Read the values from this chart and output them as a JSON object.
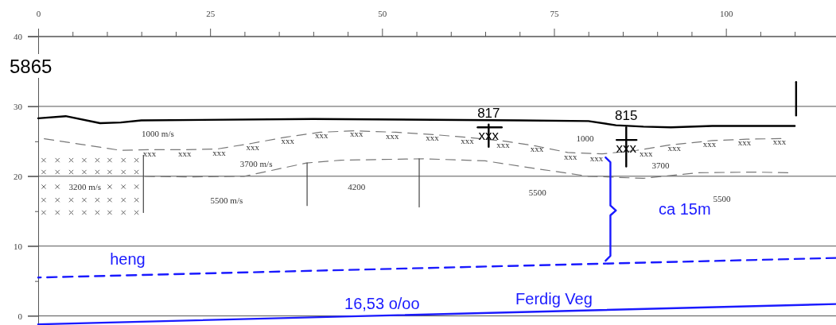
{
  "chart_data": {
    "type": "line",
    "title": "5865",
    "xlim": [
      0,
      116
    ],
    "ylim": [
      -1.3,
      40
    ],
    "xticks": [
      0,
      {
        "value": 5,
        "label": null
      },
      {
        "value": 10,
        "label": null
      },
      {
        "value": 15,
        "label": null
      },
      {
        "value": 20,
        "label": null
      },
      25,
      {
        "value": 30,
        "label": null
      },
      {
        "value": 35,
        "label": null
      },
      {
        "value": 40,
        "label": null
      },
      {
        "value": 45,
        "label": null
      },
      50,
      {
        "value": 55,
        "label": null
      },
      {
        "value": 60,
        "label": null
      },
      {
        "value": 65,
        "label": null
      },
      {
        "value": 70,
        "label": null
      },
      75,
      {
        "value": 80,
        "label": null
      },
      {
        "value": 85,
        "label": null
      },
      {
        "value": 90,
        "label": null
      },
      {
        "value": 95,
        "label": null
      },
      100,
      {
        "value": 105,
        "label": null
      },
      {
        "value": 110,
        "label": null
      }
    ],
    "yticks": [
      0,
      {
        "value": 5,
        "label": null
      },
      10,
      {
        "value": 15,
        "label": null
      },
      20,
      {
        "value": 25,
        "label": null
      },
      30,
      {
        "value": 35,
        "label": null
      },
      40
    ],
    "grid": "y",
    "series": [
      {
        "color": "#000000",
        "line_style": "solid",
        "x": [
          0,
          4,
          9,
          12,
          15,
          40,
          70,
          80,
          84,
          88,
          92,
          98,
          110
        ],
        "values": [
          28.3,
          28.6,
          27.6,
          27.7,
          28.0,
          28.2,
          28.0,
          27.9,
          27.3,
          27.1,
          27.0,
          27.2,
          27.2
        ]
      },
      {
        "color": "#777777",
        "line_style": "dashed",
        "x": [
          0,
          6,
          12,
          16,
          21,
          26,
          31,
          36,
          41,
          46,
          52,
          57,
          62,
          68,
          72,
          77,
          82,
          87,
          92,
          98,
          103,
          108
        ],
        "values": [
          25.5,
          24.6,
          23.7,
          23.8,
          23.8,
          23.9,
          24.7,
          25.6,
          26.3,
          26.5,
          26.3,
          26.0,
          25.6,
          25.0,
          24.4,
          23.4,
          23.2,
          23.7,
          24.5,
          25.1,
          25.3,
          25.4
        ]
      },
      {
        "color": "#777777",
        "line_style": "dashed",
        "x": [
          15,
          22,
          30,
          39,
          44,
          50,
          56,
          65,
          73,
          80,
          88,
          96,
          104,
          109
        ],
        "values": [
          20.0,
          19.9,
          20.0,
          21.9,
          22.3,
          22.4,
          22.5,
          22.2,
          21.0,
          20.0,
          19.7,
          20.5,
          20.6,
          20.5
        ]
      },
      {
        "color": "#444444",
        "line_style": "solid",
        "x": [
          15.3,
          15.3
        ],
        "values": [
          23.0,
          14.8
        ]
      },
      {
        "color": "#444444",
        "line_style": "solid",
        "x": [
          39.1,
          39.1
        ],
        "values": [
          21.9,
          15.8
        ]
      },
      {
        "color": "#444444",
        "line_style": "solid",
        "x": [
          55.4,
          55.4
        ],
        "values": [
          22.5,
          15.6
        ]
      },
      {
        "color": "#000000",
        "line_style": "solid",
        "x": [
          65.5,
          65.5
        ],
        "values": [
          27.4,
          24.2
        ]
      },
      {
        "color": "#000000",
        "line_style": "solid",
        "x": [
          63.9,
          67.4
        ],
        "values": [
          27.0,
          27.0
        ]
      },
      {
        "color": "#000000",
        "line_style": "solid",
        "x": [
          85.5,
          85.5
        ],
        "values": [
          27.0,
          21.4
        ]
      },
      {
        "color": "#000000",
        "line_style": "solid",
        "x": [
          84.1,
          87.0
        ],
        "values": [
          25.2,
          25.2
        ]
      },
      {
        "color": "#000000",
        "line_style": "solid",
        "x": [
          110.2,
          110.2
        ],
        "values": [
          33.5,
          28.7
        ]
      },
      {
        "color": "#1a1aff",
        "line_style": "dashed",
        "x": [
          0,
          116
        ],
        "values": [
          5.5,
          8.3
        ]
      },
      {
        "color": "#1a1aff",
        "line_style": "solid",
        "x": [
          0,
          116
        ],
        "values": [
          -1.2,
          1.7
        ]
      },
      {
        "color": "#1a1aff",
        "line_style": "solid",
        "x": [
          82.5,
          83.2,
          83.2,
          84.0,
          83.2,
          83.2,
          82.5
        ],
        "values": [
          22.7,
          22.0,
          15.8,
          15.1,
          14.4,
          8.6,
          7.9
        ]
      },
      {
        "type": "scatter",
        "color": "#666666",
        "marker": "cross",
        "x": [
          0.8,
          2.8,
          4.8,
          6.7,
          8.6,
          10.4,
          12.4,
          14.3,
          0.8,
          2.8,
          4.8,
          6.7,
          8.6,
          10.4,
          12.4,
          14.3,
          0.8,
          2.8,
          10.4,
          12.4,
          14.3,
          0.8,
          2.8,
          4.8,
          6.7,
          8.6,
          10.4,
          12.4,
          14.3,
          0.8,
          2.8,
          4.8,
          6.7,
          8.6,
          10.4,
          12.4,
          14.3
        ],
        "values": [
          22.3,
          22.3,
          22.3,
          22.3,
          22.3,
          22.3,
          22.3,
          22.3,
          20.6,
          20.6,
          20.6,
          20.6,
          20.6,
          20.6,
          20.6,
          20.6,
          18.5,
          18.5,
          18.5,
          18.5,
          18.5,
          16.6,
          16.6,
          16.6,
          16.6,
          16.6,
          16.6,
          16.6,
          16.6,
          14.8,
          14.8,
          14.8,
          14.8,
          14.8,
          14.8,
          14.8,
          14.8
        ]
      }
    ],
    "annotations": [
      "817",
      "815",
      "xxx",
      "xxx",
      "1000 m/s",
      "3700 m/s",
      "3200 m/s",
      "5500 m/s",
      "4200",
      "5500",
      "1000",
      "3700",
      "5500",
      "xxx",
      "xxx",
      "xxx",
      "xxx",
      "xxx",
      "xxx",
      "xxx",
      "xxx",
      "xxx",
      "xxx",
      "xxx",
      "xxx",
      "xxx",
      "xxx",
      "xxx",
      "xxx",
      "xxx",
      "xxx",
      "xxx",
      "heng",
      "16,53 o/oo",
      "Ferdig Veg",
      "ca 15m"
    ]
  }
}
